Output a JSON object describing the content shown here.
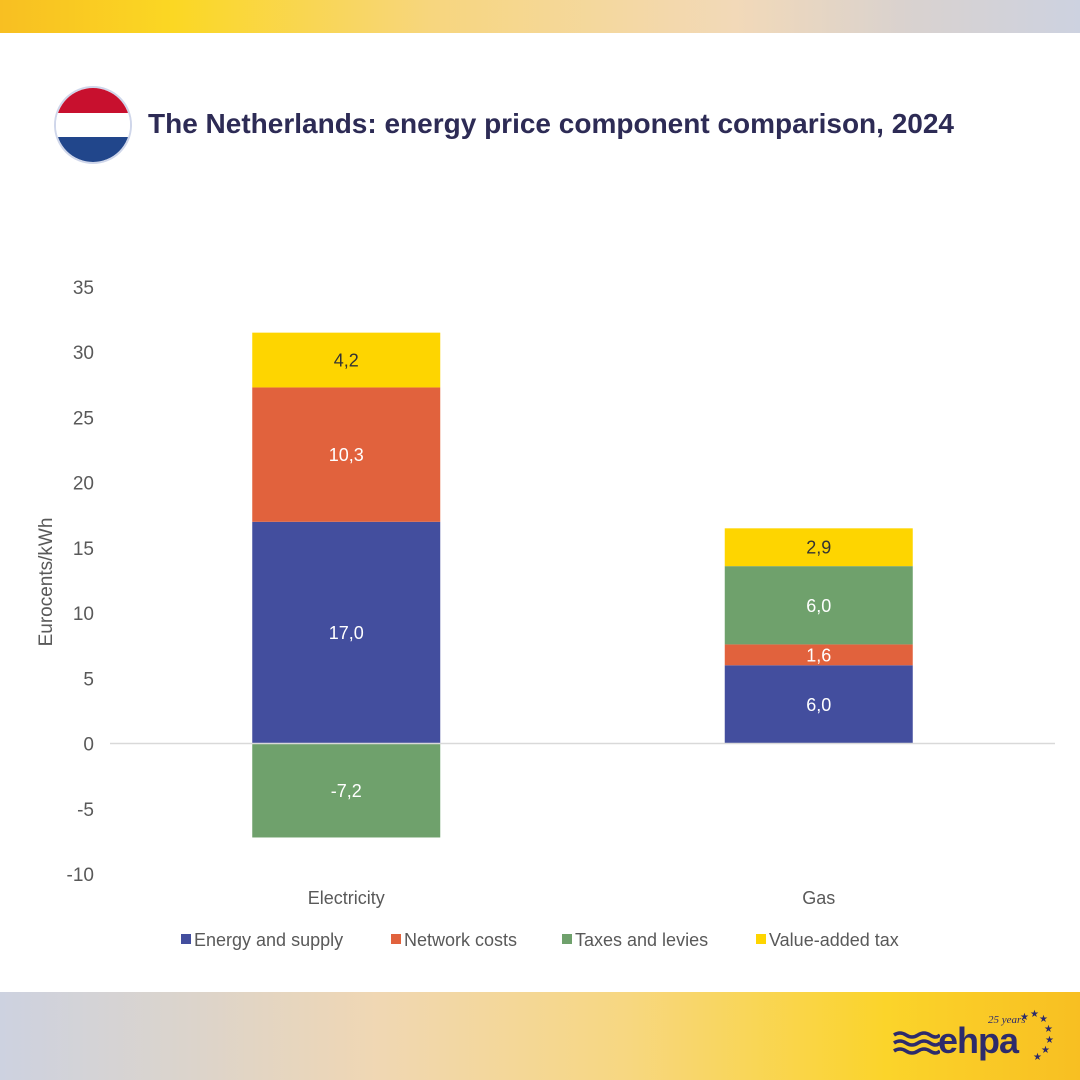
{
  "title": "The Netherlands: energy price component comparison, 2024",
  "flag": {
    "name": "Netherlands flag",
    "colors": [
      "#c8102e",
      "#ffffff",
      "#21468b"
    ]
  },
  "logo": {
    "text": "ehpa",
    "badge": "25 years"
  },
  "chart_data": {
    "type": "bar",
    "stacked": true,
    "title": "The Netherlands: energy price component comparison, 2024",
    "xlabel": "",
    "ylabel": "Eurocents/kWh",
    "ylim": [
      -10,
      35
    ],
    "yticks": [
      35,
      30,
      25,
      20,
      15,
      10,
      5,
      0,
      -5,
      -10
    ],
    "ytick_labels": [
      "35",
      "30",
      "25",
      "20",
      "15",
      "10",
      "5",
      "0",
      "-5",
      "-10"
    ],
    "grid": false,
    "legend_position": "bottom",
    "categories": [
      "Electricity",
      "Gas"
    ],
    "series": [
      {
        "name": "Energy and supply",
        "color": "#434e9e",
        "values": [
          17.0,
          6.0
        ],
        "labels": [
          "17,0",
          "6,0"
        ],
        "label_color": "#ffffff"
      },
      {
        "name": "Network costs",
        "color": "#e1623d",
        "values": [
          10.3,
          1.6
        ],
        "labels": [
          "10,3",
          "1,6"
        ],
        "label_color": "#ffffff"
      },
      {
        "name": "Taxes and levies",
        "color": "#6fa16c",
        "values": [
          -7.2,
          6.0
        ],
        "labels": [
          "-7,2",
          "6,0"
        ],
        "label_color": "#ffffff"
      },
      {
        "name": "Value-added tax",
        "color": "#fed500",
        "values": [
          4.2,
          2.9
        ],
        "labels": [
          "4,2",
          "2,9"
        ],
        "label_color": "#333333"
      }
    ]
  }
}
